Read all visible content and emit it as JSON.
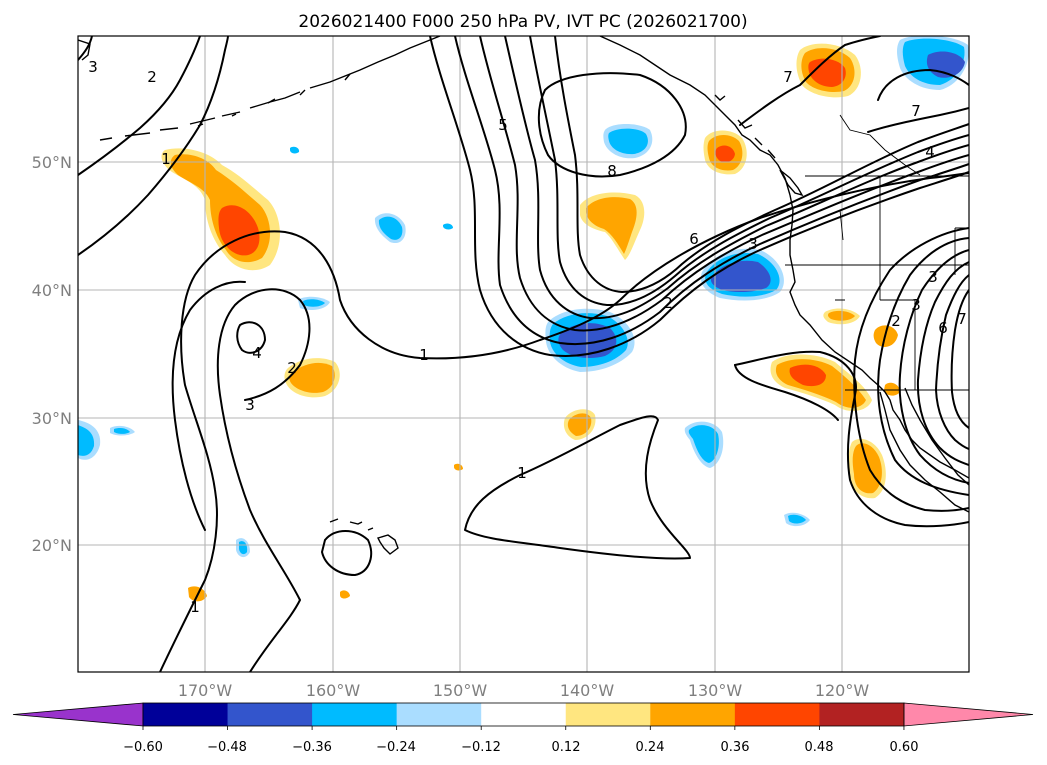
{
  "title": "2026021400 F000 250 hPa PV, IVT PC (2026021700)",
  "map": {
    "lat_labels": [
      "50°N",
      "40°N",
      "30°N",
      "20°N"
    ],
    "lon_labels": [
      "170°W",
      "160°W",
      "150°W",
      "140°W",
      "130°W",
      "120°W"
    ]
  },
  "colorbar": {
    "ticks": [
      "−0.60",
      "−0.48",
      "−0.36",
      "−0.24",
      "−0.12",
      "0.12",
      "0.24",
      "0.36",
      "0.48",
      "0.60"
    ],
    "colors": [
      "#9933cc",
      "#000099",
      "#3355cc",
      "#00bbff",
      "#aaddff",
      "#ffffff",
      "#ffe680",
      "#ffa500",
      "#ff4500",
      "#b22222",
      "#ff88aa"
    ]
  },
  "contour_labels": [
    "3",
    "2",
    "1",
    "4",
    "3",
    "2",
    "1",
    "5",
    "8",
    "6",
    "3",
    "2",
    "1",
    "7",
    "7",
    "4",
    "3",
    "3",
    "2",
    "6",
    "7",
    "1"
  ],
  "shading_colors": {
    "neg_light": "#aaddff",
    "neg_mid": "#00bbff",
    "neg_strong": "#3355cc",
    "pos_light": "#ffe680",
    "pos_mid": "#ffa500",
    "pos_strong": "#ff4500"
  }
}
